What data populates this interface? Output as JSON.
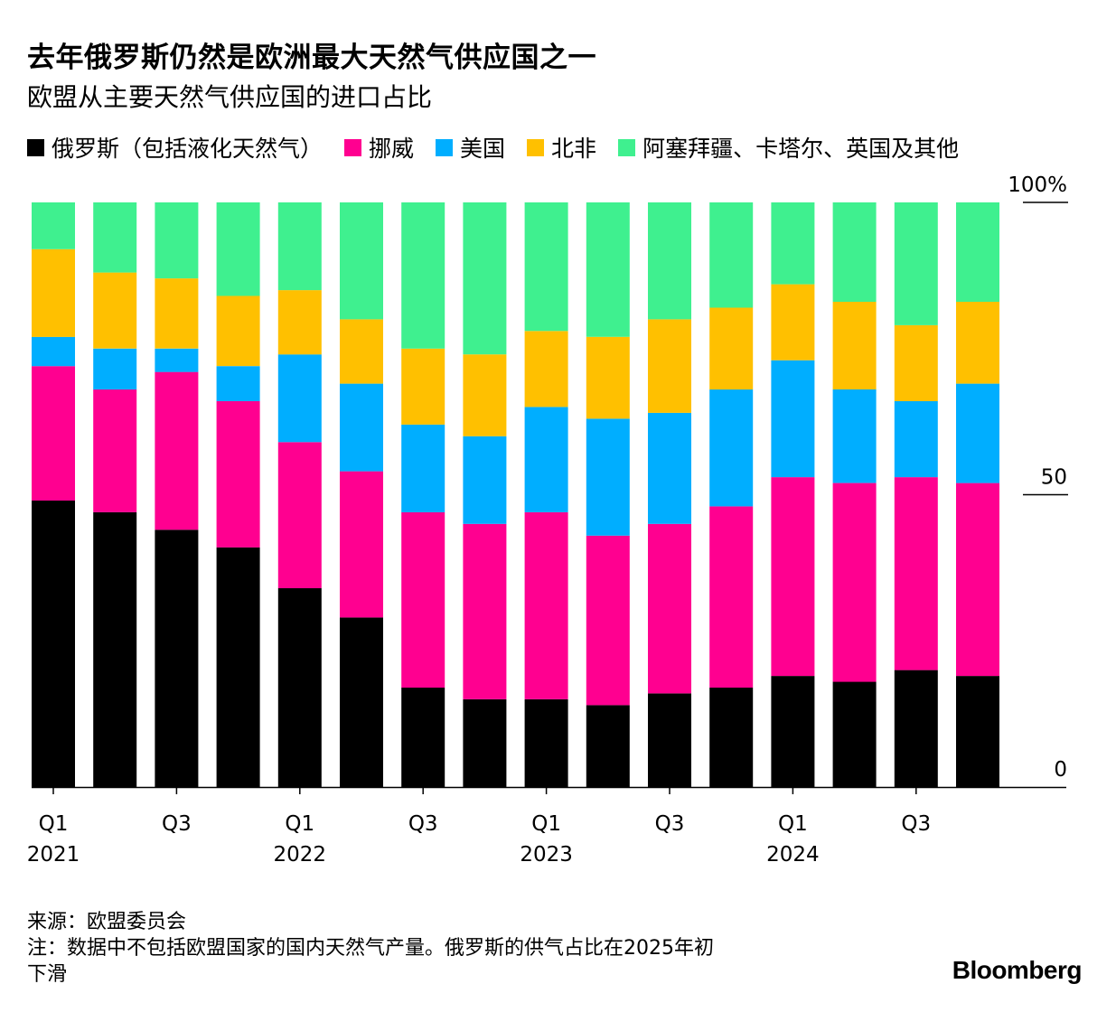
{
  "header": {
    "title": "去年俄罗斯仍然是欧洲最大天然气供应国之一",
    "subtitle": "欧盟从主要天然气供应国的进口占比"
  },
  "footer": {
    "source": "来源：欧盟委员会",
    "note_line1": "注：数据中不包括欧盟国家的国内天然气产量。俄罗斯的供气占比在2025年初",
    "note_line2": "下滑",
    "brand": "Bloomberg"
  },
  "chart_data": {
    "type": "bar",
    "stacked": true,
    "unit": "%",
    "ylim": [
      0,
      100
    ],
    "y_ticks": [
      {
        "value": 100,
        "label": "100%"
      },
      {
        "value": 50,
        "label": "50"
      },
      {
        "value": 0,
        "label": "0"
      }
    ],
    "x_tick_labels": [
      {
        "index": 0,
        "quarter": "Q1",
        "year": "2021"
      },
      {
        "index": 2,
        "quarter": "Q3",
        "year": ""
      },
      {
        "index": 4,
        "quarter": "Q1",
        "year": "2022"
      },
      {
        "index": 6,
        "quarter": "Q3",
        "year": ""
      },
      {
        "index": 8,
        "quarter": "Q1",
        "year": "2023"
      },
      {
        "index": 10,
        "quarter": "Q3",
        "year": ""
      },
      {
        "index": 12,
        "quarter": "Q1",
        "year": "2024"
      },
      {
        "index": 14,
        "quarter": "Q3",
        "year": ""
      }
    ],
    "categories": [
      "2021 Q1",
      "2021 Q2",
      "2021 Q3",
      "2021 Q4",
      "2022 Q1",
      "2022 Q2",
      "2022 Q3",
      "2022 Q4",
      "2023 Q1",
      "2023 Q2",
      "2023 Q3",
      "2023 Q4",
      "2024 Q1",
      "2024 Q2",
      "2024 Q3",
      "2024 Q4"
    ],
    "series": [
      {
        "name": "俄罗斯（包括液化天然气）",
        "color": "#000000",
        "values": [
          49,
          47,
          44,
          41,
          34,
          29,
          17,
          15,
          15,
          14,
          16,
          17,
          19,
          18,
          20,
          19
        ]
      },
      {
        "name": "挪威",
        "color": "#FF0090",
        "values": [
          23,
          21,
          27,
          25,
          25,
          25,
          30,
          30,
          32,
          29,
          29,
          31,
          34,
          34,
          33,
          33
        ]
      },
      {
        "name": "美国",
        "color": "#00AEFF",
        "values": [
          5,
          7,
          4,
          6,
          15,
          15,
          15,
          15,
          18,
          20,
          19,
          20,
          20,
          16,
          13,
          17
        ]
      },
      {
        "name": "北非",
        "color": "#FFC000",
        "values": [
          15,
          13,
          12,
          12,
          11,
          11,
          13,
          14,
          13,
          14,
          16,
          14,
          13,
          15,
          13,
          14
        ]
      },
      {
        "name": "阿塞拜疆、卡塔尔、英国及其他",
        "color": "#3FF08F",
        "values": [
          8,
          12,
          13,
          16,
          15,
          20,
          25,
          26,
          22,
          23,
          20,
          18,
          14,
          17,
          21,
          17
        ]
      }
    ]
  }
}
